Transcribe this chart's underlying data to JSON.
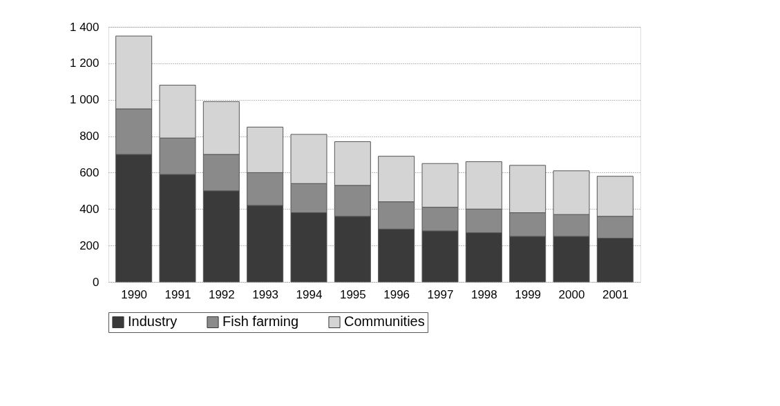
{
  "chart_data": {
    "type": "bar",
    "stacked": true,
    "categories": [
      "1990",
      "1991",
      "1992",
      "1993",
      "1994",
      "1995",
      "1996",
      "1997",
      "1998",
      "1999",
      "2000",
      "2001"
    ],
    "series": [
      {
        "name": "Industry",
        "color": "#3a3a3a",
        "values": [
          700,
          590,
          500,
          420,
          380,
          360,
          290,
          280,
          270,
          250,
          250,
          240
        ]
      },
      {
        "name": "Fish farming",
        "color": "#8a8a8a",
        "values": [
          250,
          200,
          200,
          180,
          160,
          170,
          150,
          130,
          130,
          130,
          120,
          120
        ]
      },
      {
        "name": "Communities",
        "color": "#d4d4d4",
        "values": [
          400,
          290,
          290,
          250,
          270,
          240,
          250,
          240,
          260,
          260,
          240,
          220
        ]
      }
    ],
    "ylim": [
      0,
      1400
    ],
    "yticks": [
      0,
      200,
      400,
      600,
      800,
      {
        "value": 1000,
        "label": "1 000"
      },
      {
        "value": 1200,
        "label": "1 200"
      },
      {
        "value": 1400,
        "label": "1 400"
      }
    ],
    "grid": "y",
    "legend": "bottom"
  }
}
